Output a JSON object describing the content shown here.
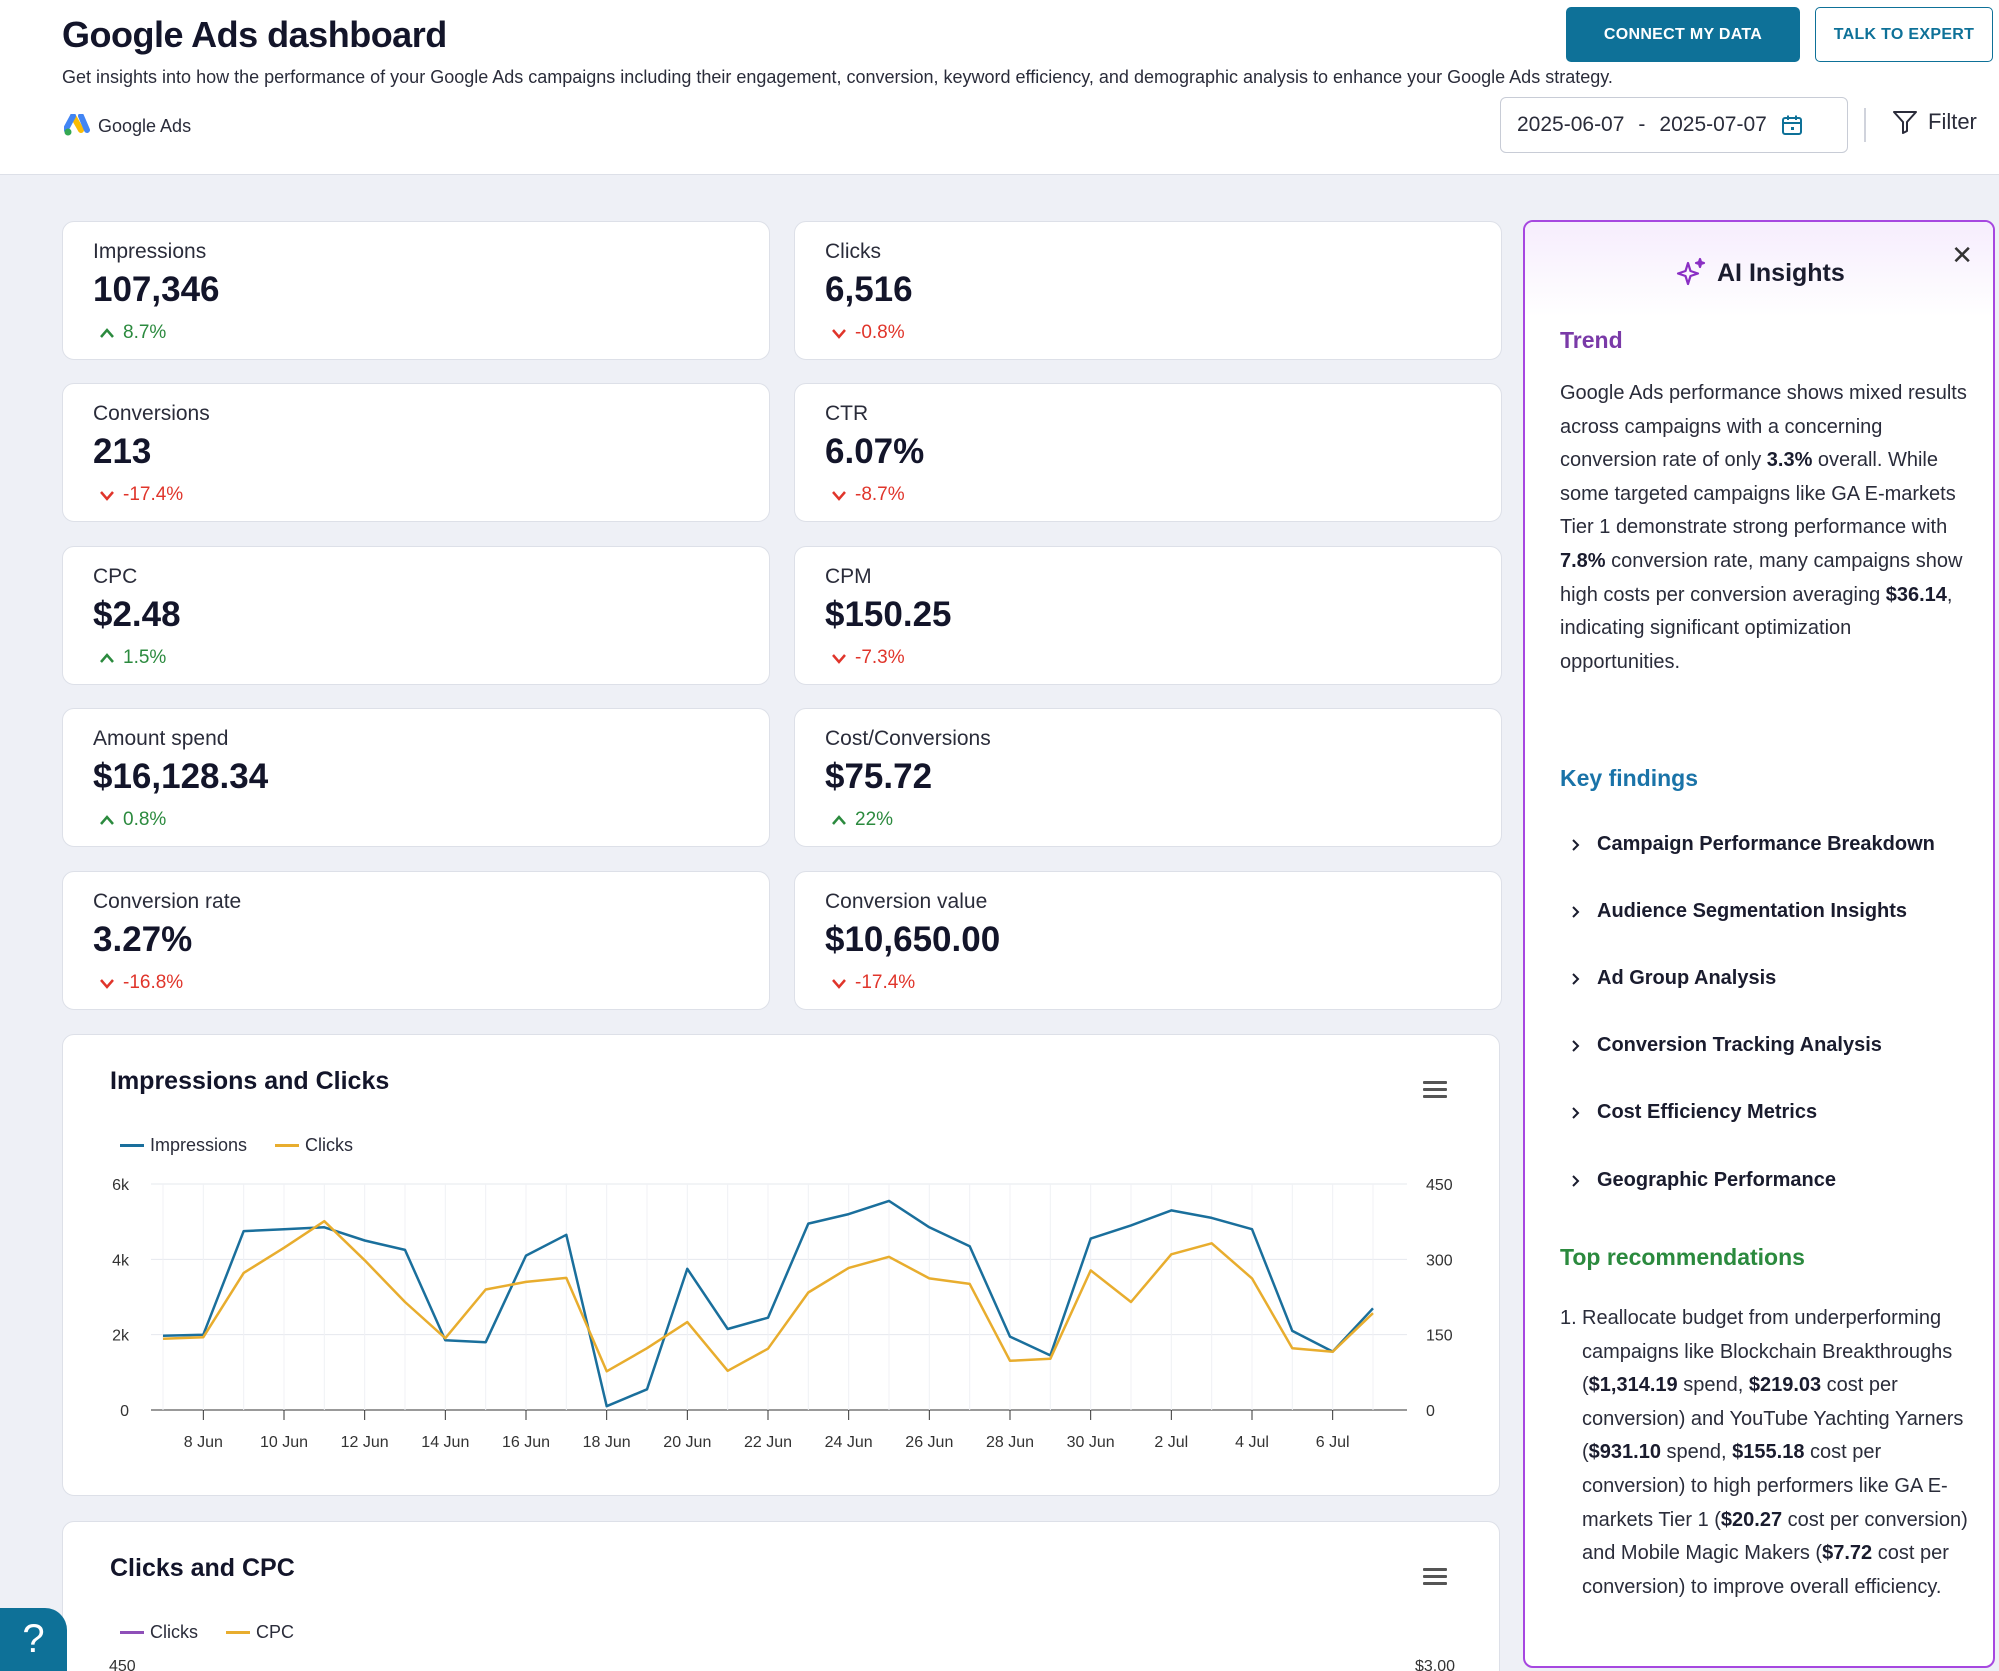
{
  "header": {
    "title": "Google Ads dashboard",
    "description": "Get insights into how the performance of your Google Ads campaigns including their engagement, conversion, keyword efficiency, and demographic analysis to enhance your Google Ads strategy.",
    "source_label": "Google Ads",
    "connect_label": "CONNECT MY DATA",
    "expert_label": "TALK TO EXPERT",
    "date_start": "2025-06-07",
    "date_sep": "-",
    "date_end": "2025-07-07",
    "filter_label": "Filter"
  },
  "kpis": [
    {
      "label": "Impressions",
      "value": "107,346",
      "change": "8.7%",
      "direction": "up"
    },
    {
      "label": "Clicks",
      "value": "6,516",
      "change": "-0.8%",
      "direction": "down"
    },
    {
      "label": "Conversions",
      "value": "213",
      "change": "-17.4%",
      "direction": "down"
    },
    {
      "label": "CTR",
      "value": "6.07%",
      "change": "-8.7%",
      "direction": "down"
    },
    {
      "label": "CPC",
      "value": "$2.48",
      "change": "1.5%",
      "direction": "up"
    },
    {
      "label": "CPM",
      "value": "$150.25",
      "change": "-7.3%",
      "direction": "down"
    },
    {
      "label": "Amount spend",
      "value": "$16,128.34",
      "change": "0.8%",
      "direction": "up"
    },
    {
      "label": "Cost/Conversions",
      "value": "$75.72",
      "change": "22%",
      "direction": "up"
    },
    {
      "label": "Conversion rate",
      "value": "3.27%",
      "change": "-16.8%",
      "direction": "down"
    },
    {
      "label": "Conversion value",
      "value": "$10,650.00",
      "change": "-17.4%",
      "direction": "down"
    }
  ],
  "colors": {
    "primary": "#0e7198",
    "up": "#2b8a3e",
    "down": "#e0352b",
    "impressions": "#1a6f9c",
    "clicks_line": "#e8ad2e",
    "clicks_legend_2": "#8e4fb8",
    "cpc": "#e8ad2e",
    "ai_border": "#a647e0"
  },
  "chart1": {
    "title": "Impressions and Clicks",
    "legend": [
      "Impressions",
      "Clicks"
    ]
  },
  "chart2": {
    "title": "Clicks and CPC",
    "legend": [
      "Clicks",
      "CPC"
    ],
    "y_left_top": "450",
    "y_right_top": "$3.00"
  },
  "chart_data": {
    "type": "line",
    "title": "Impressions and Clicks",
    "x": [
      "7 Jun",
      "8 Jun",
      "9 Jun",
      "10 Jun",
      "11 Jun",
      "12 Jun",
      "13 Jun",
      "14 Jun",
      "15 Jun",
      "16 Jun",
      "17 Jun",
      "18 Jun",
      "19 Jun",
      "20 Jun",
      "21 Jun",
      "22 Jun",
      "23 Jun",
      "24 Jun",
      "25 Jun",
      "26 Jun",
      "27 Jun",
      "28 Jun",
      "29 Jun",
      "30 Jun",
      "1 Jul",
      "2 Jul",
      "3 Jul",
      "4 Jul",
      "5 Jul",
      "6 Jul",
      "7 Jul"
    ],
    "x_ticks": [
      "8 Jun",
      "10 Jun",
      "12 Jun",
      "14 Jun",
      "16 Jun",
      "18 Jun",
      "20 Jun",
      "22 Jun",
      "24 Jun",
      "26 Jun",
      "28 Jun",
      "30 Jun",
      "2 Jul",
      "4 Jul",
      "6 Jul"
    ],
    "y_left_ticks": [
      "0",
      "2k",
      "4k",
      "6k"
    ],
    "y_right_ticks": [
      "0",
      "150",
      "300",
      "450"
    ],
    "ylim_left": [
      0,
      6000
    ],
    "ylim_right": [
      0,
      450
    ],
    "series": [
      {
        "name": "Impressions",
        "axis": "left",
        "values": [
          1970,
          2000,
          4750,
          4800,
          4850,
          4500,
          4250,
          1850,
          1800,
          4100,
          4650,
          100,
          550,
          3750,
          2150,
          2450,
          4950,
          5200,
          5550,
          4850,
          4350,
          1950,
          1450,
          4550,
          4900,
          5300,
          5100,
          4800,
          2100,
          1550,
          2700
        ]
      },
      {
        "name": "Clicks",
        "axis": "right",
        "values": [
          142,
          145,
          273,
          323,
          376,
          298,
          215,
          143,
          240,
          255,
          263,
          77,
          123,
          175,
          78,
          122,
          234,
          283,
          305,
          262,
          251,
          98,
          102,
          278,
          215,
          310,
          332,
          262,
          123,
          116,
          193
        ]
      }
    ]
  },
  "ai": {
    "title": "AI Insights",
    "close": "✕",
    "trend_heading": "Trend",
    "trend_parts": [
      "Google Ads performance shows mixed results across campaigns with a concerning conversion rate of only ",
      "3.3%",
      " overall. While some targeted campaigns like GA E-markets Tier 1 demonstrate strong performance with ",
      "7.8%",
      " conversion rate, many campaigns show high costs per conversion averaging ",
      "$36.14",
      ", indicating significant optimization opportunities."
    ],
    "key_heading": "Key findings",
    "findings": [
      "Campaign Performance Breakdown",
      "Audience Segmentation Insights",
      "Ad Group Analysis",
      "Conversion Tracking Analysis",
      "Cost Efficiency Metrics",
      "Geographic Performance"
    ],
    "rec_heading": "Top recommendations",
    "rec_num": "1.",
    "rec_parts": [
      "Reallocate budget from underperforming campaigns like Blockchain Breakthroughs (",
      "$1,314.19",
      " spend, ",
      "$219.03",
      " cost per conversion) and YouTube Yachting Yarners (",
      "$931.10",
      " spend, ",
      "$155.18",
      " cost per conversion) to high performers like GA E-markets Tier 1 (",
      "$20.27",
      " cost per conversion) and Mobile Magic Makers (",
      "$7.72",
      " cost per conversion) to improve overall efficiency."
    ]
  },
  "help": {
    "label": "?"
  }
}
